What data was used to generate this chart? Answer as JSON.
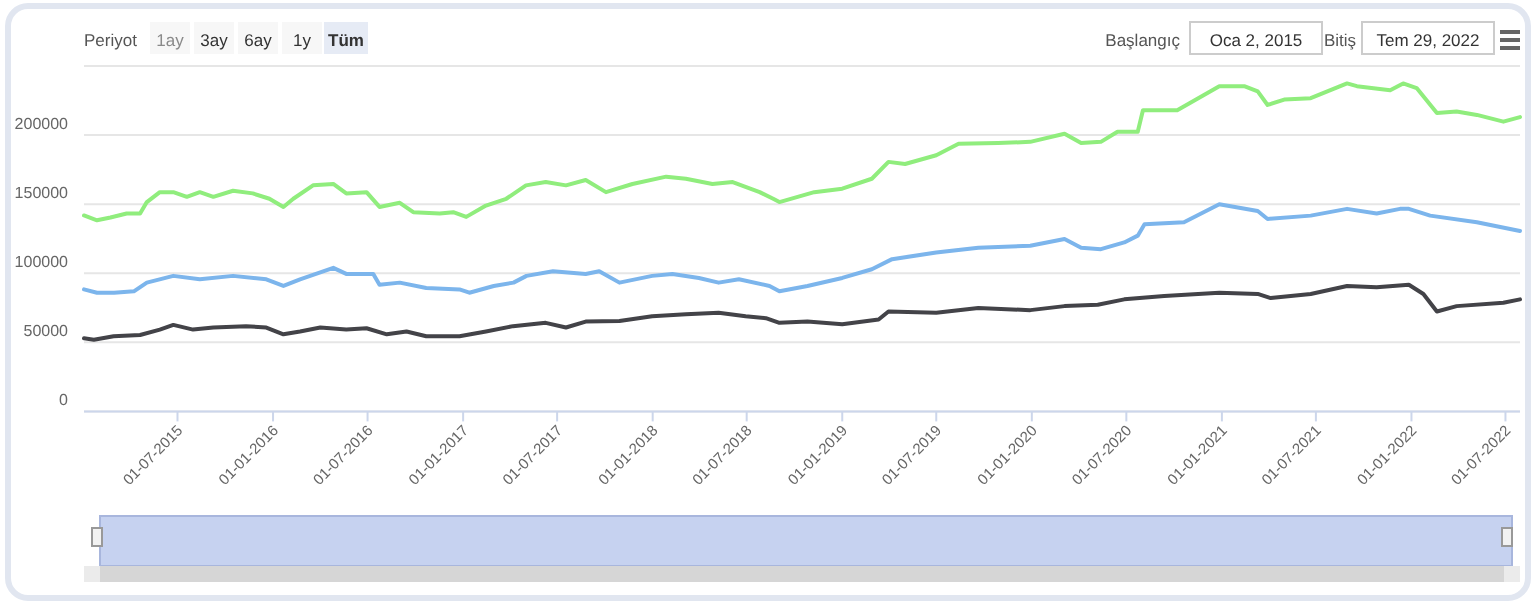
{
  "chart_data": {
    "type": "line",
    "annotations": [
      "Periyot",
      "1ay",
      "3ay",
      "6ay",
      "1y",
      "Tüm",
      "Başlangıç",
      "Oca 2, 2015",
      "Bitiş",
      "Tem 29, 2022"
    ],
    "xlim": [
      "2015-01-02",
      "2022-07-29"
    ],
    "xticks": [
      {
        "value": "2015-07-01",
        "label": "01-07-2015"
      },
      {
        "value": "2016-01-01",
        "label": "01-01-2016"
      },
      {
        "value": "2016-07-01",
        "label": "01-07-2016"
      },
      {
        "value": "2017-01-01",
        "label": "01-01-2017"
      },
      {
        "value": "2017-07-01",
        "label": "01-07-2017"
      },
      {
        "value": "2018-01-01",
        "label": "01-01-2018"
      },
      {
        "value": "2018-07-01",
        "label": "01-07-2018"
      },
      {
        "value": "2019-01-01",
        "label": "01-01-2019"
      },
      {
        "value": "2019-07-01",
        "label": "01-07-2019"
      },
      {
        "value": "2020-01-01",
        "label": "01-01-2020"
      },
      {
        "value": "2020-07-01",
        "label": "01-07-2020"
      },
      {
        "value": "2021-01-01",
        "label": "01-01-2021"
      },
      {
        "value": "2021-07-01",
        "label": "01-07-2021"
      },
      {
        "value": "2022-01-01",
        "label": "01-01-2022"
      },
      {
        "value": "2022-07-01",
        "label": "01-07-2022"
      }
    ],
    "ylim": [
      0,
      250000
    ],
    "yticks": [
      0,
      50000,
      100000,
      150000,
      200000,
      {
        "value": 250000,
        "label": null
      }
    ],
    "grid": "y",
    "marker": "none",
    "line_style": "solid",
    "series": [
      {
        "color": "#90ed7d",
        "x": [
          "2015-01-02",
          "2015-01-27",
          "2015-02-22",
          "2015-03-25",
          "2015-04-20",
          "2015-05-03",
          "2015-05-28",
          "2015-06-23",
          "2015-07-19",
          "2015-08-13",
          "2015-09-08",
          "2015-10-16",
          "2015-11-23",
          "2015-12-25",
          "2016-01-21",
          "2016-02-09",
          "2016-03-18",
          "2016-04-26",
          "2016-05-21",
          "2016-06-29",
          "2016-07-24",
          "2016-09-01",
          "2016-09-27",
          "2016-11-17",
          "2016-12-13",
          "2017-01-07",
          "2017-02-14",
          "2017-03-25",
          "2017-05-02",
          "2017-06-09",
          "2017-07-18",
          "2017-08-25",
          "2017-10-03",
          "2017-11-23",
          "2018-01-27",
          "2018-03-06",
          "2018-04-26",
          "2018-06-04",
          "2018-07-26",
          "2018-08-21",
          "2018-09-02",
          "2018-11-08",
          "2019-01-01",
          "2019-02-27",
          "2019-03-31",
          "2019-05-02",
          "2019-07-01",
          "2019-08-13",
          "2019-10-28",
          "2019-12-29",
          "2020-03-04",
          "2020-04-05",
          "2020-05-13",
          "2020-06-14",
          "2020-07-23",
          "2020-08-02",
          "2020-10-07",
          "2020-12-27",
          "2021-02-13",
          "2021-03-11",
          "2021-03-30",
          "2021-05-01",
          "2021-06-21",
          "2021-08-30",
          "2021-09-18",
          "2021-11-21",
          "2021-12-16",
          "2022-01-11",
          "2022-02-19",
          "2022-03-29",
          "2022-05-07",
          "2022-06-27",
          "2022-07-29"
        ],
        "values": [
          141800,
          138300,
          140300,
          143200,
          143200,
          151500,
          158700,
          158700,
          155300,
          158700,
          155300,
          159700,
          157800,
          153900,
          148000,
          153900,
          163600,
          164600,
          157800,
          158700,
          148000,
          151000,
          144200,
          143200,
          144200,
          140800,
          149000,
          153900,
          163600,
          166000,
          163600,
          167500,
          158700,
          164600,
          169900,
          168400,
          164600,
          166000,
          158700,
          153900,
          151500,
          158700,
          161200,
          168400,
          180600,
          179100,
          185400,
          193700,
          194200,
          195100,
          201000,
          194200,
          195100,
          202400,
          202400,
          218000,
          218000,
          235400,
          235400,
          231600,
          221800,
          225700,
          226700,
          237400,
          235400,
          232500,
          237400,
          234000,
          216000,
          217000,
          214600,
          209700,
          213000
        ]
      },
      {
        "color": "#7cb5ec",
        "x": [
          "2015-01-02",
          "2015-01-27",
          "2015-03-01",
          "2015-04-08",
          "2015-05-03",
          "2015-06-23",
          "2015-08-13",
          "2015-10-16",
          "2015-12-19",
          "2016-01-21",
          "2016-02-22",
          "2016-04-26",
          "2016-05-21",
          "2016-07-12",
          "2016-07-24",
          "2016-09-01",
          "2016-10-22",
          "2016-12-25",
          "2017-01-13",
          "2017-03-01",
          "2017-04-08",
          "2017-05-03",
          "2017-06-23",
          "2017-08-25",
          "2017-09-20",
          "2017-10-29",
          "2017-12-31",
          "2018-02-08",
          "2018-03-31",
          "2018-05-08",
          "2018-06-16",
          "2018-08-14",
          "2018-09-02",
          "2018-10-26",
          "2019-01-01",
          "2019-02-27",
          "2019-04-07",
          "2019-07-01",
          "2019-09-20",
          "2019-12-29",
          "2020-03-04",
          "2020-04-05",
          "2020-05-13",
          "2020-06-27",
          "2020-07-23",
          "2020-08-05",
          "2020-10-20",
          "2020-12-27",
          "2021-03-11",
          "2021-03-30",
          "2021-06-21",
          "2021-08-30",
          "2021-10-26",
          "2021-12-10",
          "2021-12-27",
          "2022-02-06",
          "2022-05-07",
          "2022-07-29"
        ],
        "values": [
          88300,
          85900,
          85900,
          86900,
          93200,
          98100,
          95600,
          98100,
          95600,
          90800,
          95600,
          103900,
          99500,
          99500,
          91700,
          93200,
          89300,
          88300,
          85900,
          90800,
          93200,
          98100,
          101500,
          99500,
          101500,
          93200,
          98100,
          99500,
          96600,
          93200,
          95600,
          90800,
          86900,
          90800,
          96600,
          102900,
          110200,
          115000,
          118400,
          119900,
          124800,
          118400,
          117400,
          122300,
          127200,
          135400,
          136900,
          150000,
          145100,
          139300,
          141700,
          146600,
          143200,
          146600,
          146600,
          141700,
          136900,
          130600
        ]
      },
      {
        "color": "#434348",
        "x": [
          "2015-01-02",
          "2015-01-21",
          "2015-02-28",
          "2015-04-20",
          "2015-05-28",
          "2015-06-23",
          "2015-07-31",
          "2015-09-08",
          "2015-11-10",
          "2015-12-19",
          "2016-01-21",
          "2016-02-22",
          "2016-04-01",
          "2016-05-21",
          "2016-06-29",
          "2016-08-07",
          "2016-09-14",
          "2016-10-22",
          "2016-12-25",
          "2017-02-14",
          "2017-04-07",
          "2017-06-09",
          "2017-07-18",
          "2017-08-25",
          "2017-10-29",
          "2017-12-31",
          "2018-03-06",
          "2018-05-08",
          "2018-06-29",
          "2018-08-07",
          "2018-09-02",
          "2018-10-26",
          "2019-01-01",
          "2019-03-12",
          "2019-03-31",
          "2019-07-01",
          "2019-09-20",
          "2019-12-29",
          "2020-03-04",
          "2020-05-07",
          "2020-06-27",
          "2020-09-12",
          "2020-12-27",
          "2021-03-11",
          "2021-04-05",
          "2021-06-21",
          "2021-08-30",
          "2021-10-26",
          "2021-12-27",
          "2022-01-24",
          "2022-02-19",
          "2022-03-29",
          "2022-06-27",
          "2022-07-29"
        ],
        "values": [
          52900,
          51900,
          54400,
          55300,
          59200,
          62600,
          59200,
          60700,
          61700,
          60700,
          55800,
          57800,
          60700,
          59200,
          60200,
          55800,
          57800,
          54400,
          54400,
          57800,
          61700,
          64100,
          60700,
          65000,
          65500,
          68900,
          70400,
          71400,
          68900,
          67500,
          64100,
          65000,
          63100,
          66500,
          72300,
          71400,
          74800,
          73300,
          76200,
          77200,
          81100,
          83500,
          85900,
          85000,
          82000,
          85000,
          90800,
          89900,
          91700,
          85000,
          72300,
          76200,
          78600,
          81100
        ]
      }
    ]
  }
}
